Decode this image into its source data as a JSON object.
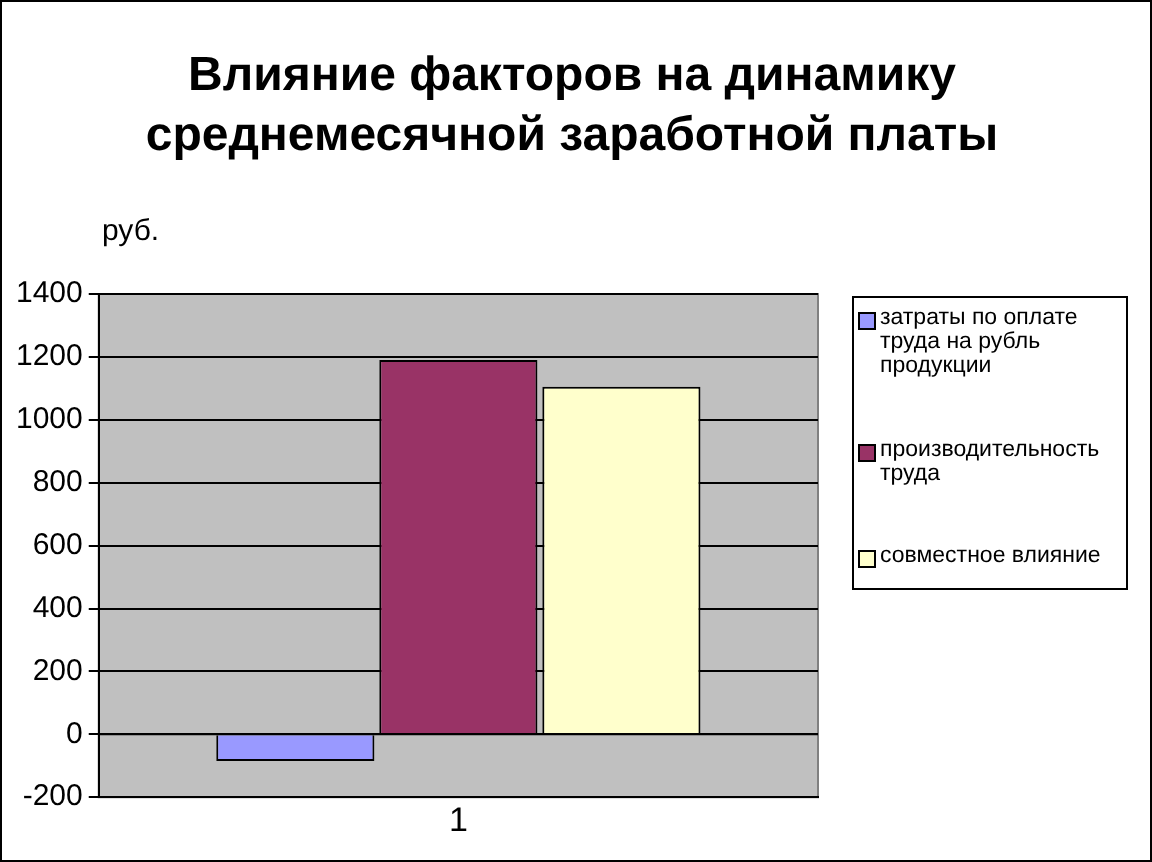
{
  "chart_data": {
    "type": "bar",
    "title": "Влияние факторов на динамику среднемесячной заработной платы",
    "ylabel": "руб.",
    "categories": [
      "1"
    ],
    "series": [
      {
        "name": "затраты по оплате труда на рубль продукции",
        "color": "#9999ff",
        "values": [
          -85
        ]
      },
      {
        "name": "производительность труда",
        "color": "#993366",
        "values": [
          1190
        ]
      },
      {
        "name": "совместное влияние",
        "color": "#ffffcc",
        "values": [
          1105
        ]
      }
    ],
    "ylim": [
      -200,
      1400
    ],
    "yticks": [
      -200,
      0,
      200,
      400,
      600,
      800,
      1000,
      1200,
      1400
    ],
    "grid": "y",
    "legend": "right"
  }
}
